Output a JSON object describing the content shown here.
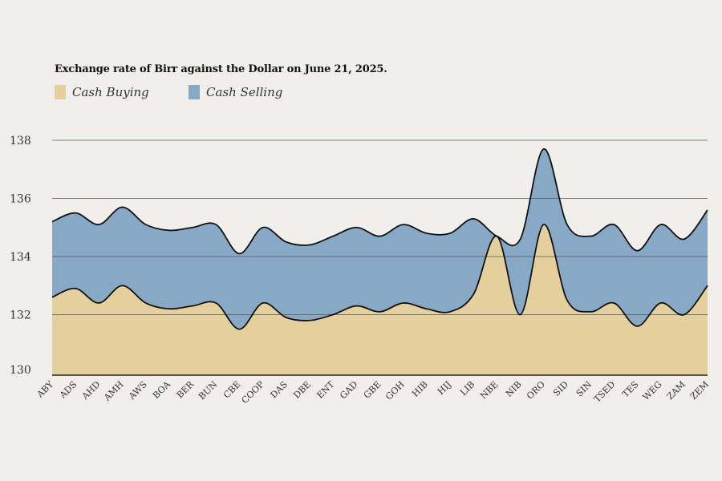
{
  "chart_data": {
    "type": "area",
    "title": "Exchange rate of Birr against the Dollar on June 21, 2025.",
    "categories": [
      "ABY",
      "ADS",
      "AHD",
      "AMH",
      "AWS",
      "BOA",
      "BER",
      "BUN",
      "CBE",
      "COOP",
      "DAS",
      "DBE",
      "ENT",
      "GAD",
      "GBE",
      "GOH",
      "HIB",
      "HIJ",
      "LIB",
      "NBE",
      "NIB",
      "ORO",
      "SID",
      "SIN",
      "TSED",
      "TES",
      "WEG",
      "ZAM",
      "ZEM"
    ],
    "series": [
      {
        "name": "Cash Buying",
        "color": "#e3d09c",
        "values": [
          132.6,
          132.9,
          132.4,
          133.0,
          132.4,
          132.2,
          132.3,
          132.4,
          131.5,
          132.4,
          131.9,
          131.8,
          132.0,
          132.3,
          132.1,
          132.4,
          132.2,
          132.1,
          132.7,
          134.7,
          132.0,
          135.1,
          132.5,
          132.1,
          132.4,
          131.6,
          132.4,
          132.0,
          133.0
        ]
      },
      {
        "name": "Cash Selling",
        "color": "#87a9c6",
        "values": [
          135.2,
          135.5,
          135.1,
          135.7,
          135.1,
          134.9,
          135.0,
          135.1,
          134.1,
          135.0,
          134.5,
          134.4,
          134.7,
          135.0,
          134.7,
          135.1,
          134.8,
          134.8,
          135.3,
          134.7,
          134.6,
          137.7,
          135.1,
          134.7,
          135.1,
          134.2,
          135.1,
          134.6,
          135.6
        ]
      }
    ],
    "yticks": [
      130,
      132,
      134,
      136,
      138
    ],
    "ylim": [
      130,
      138
    ],
    "xlabel": "",
    "ylabel": "",
    "legend": "top-left",
    "grid": true
  }
}
